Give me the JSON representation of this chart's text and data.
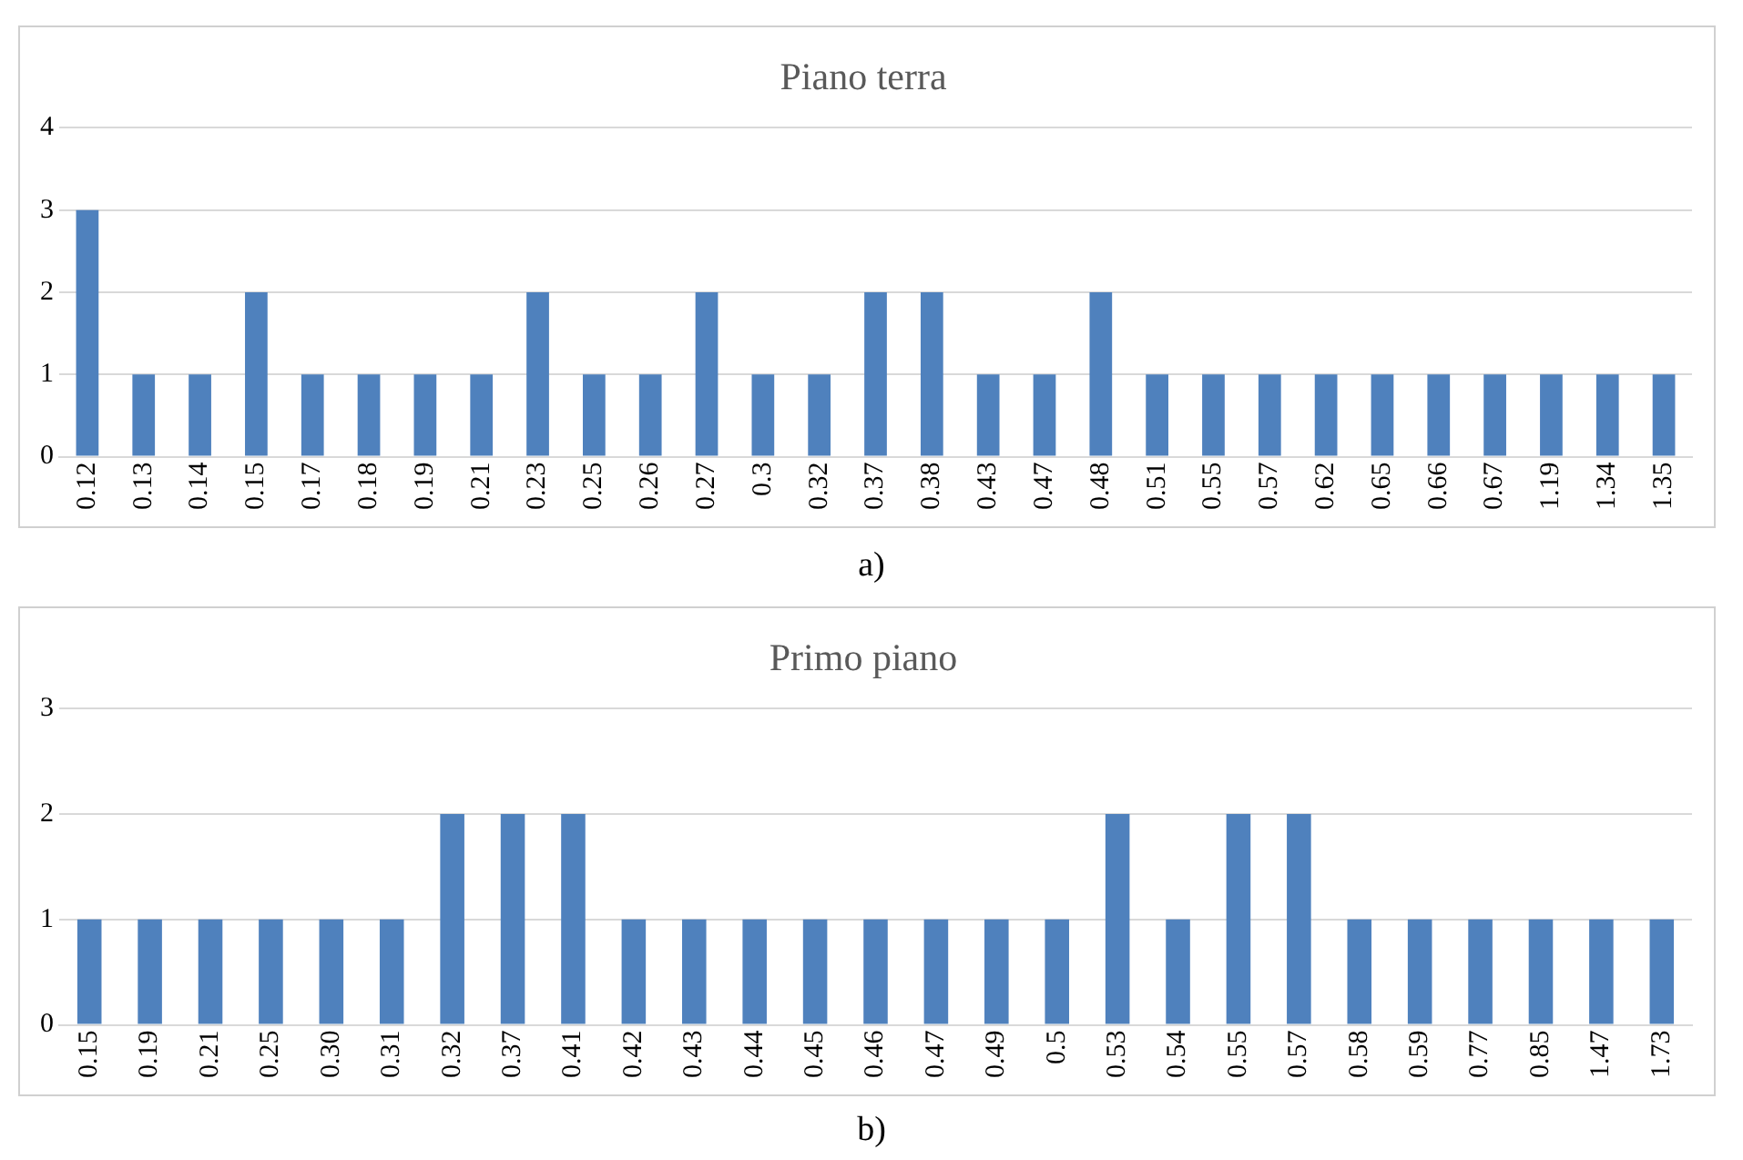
{
  "chart_data": [
    {
      "type": "bar",
      "title": "Piano terra",
      "categories": [
        "0.12",
        "0.13",
        "0.14",
        "0.15",
        "0.17",
        "0.18",
        "0.19",
        "0.21",
        "0.23",
        "0.25",
        "0.26",
        "0.27",
        "0.3",
        "0.32",
        "0.37",
        "0.38",
        "0.43",
        "0.47",
        "0.48",
        "0.51",
        "0.55",
        "0.57",
        "0.62",
        "0.65",
        "0.66",
        "0.67",
        "1.19",
        "1.34",
        "1.35"
      ],
      "values": [
        3,
        1,
        1,
        2,
        1,
        1,
        1,
        1,
        2,
        1,
        1,
        2,
        1,
        1,
        2,
        2,
        1,
        1,
        2,
        1,
        1,
        1,
        1,
        1,
        1,
        1,
        1,
        1,
        1
      ],
      "color": "#4f81bd",
      "ylim": [
        0,
        4
      ],
      "yticks": [
        0,
        1,
        2,
        3,
        4
      ],
      "grid": "y",
      "legend": false,
      "annotations": [
        "a)"
      ]
    },
    {
      "type": "bar",
      "title": "Primo piano",
      "categories": [
        "0.15",
        "0.19",
        "0.21",
        "0.25",
        "0.30",
        "0.31",
        "0.32",
        "0.37",
        "0.41",
        "0.42",
        "0.43",
        "0.44",
        "0.45",
        "0.46",
        "0.47",
        "0.49",
        "0.5",
        "0.53",
        "0.54",
        "0.55",
        "0.57",
        "0.58",
        "0.59",
        "0.77",
        "0.85",
        "1.47",
        "1.73"
      ],
      "values": [
        1,
        1,
        1,
        1,
        1,
        1,
        2,
        2,
        2,
        1,
        1,
        1,
        1,
        1,
        1,
        1,
        1,
        2,
        1,
        2,
        2,
        1,
        1,
        1,
        1,
        1,
        1
      ],
      "color": "#4f81bd",
      "ylim": [
        0,
        3
      ],
      "yticks": [
        0,
        1,
        2,
        3
      ],
      "grid": "y",
      "legend": false,
      "annotations": [
        "b)"
      ]
    }
  ]
}
